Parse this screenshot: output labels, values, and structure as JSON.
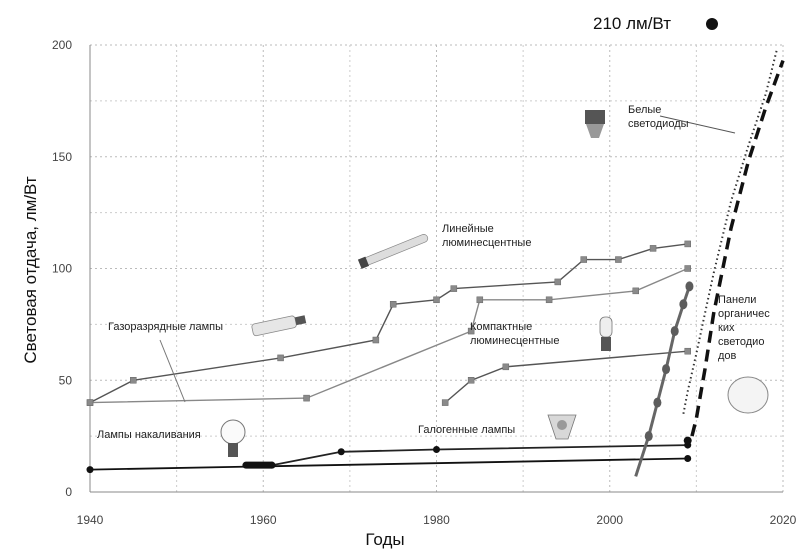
{
  "chart_data": {
    "type": "line",
    "title": "",
    "xlabel": "Годы",
    "ylabel": "Световая отдача, лм/Вт",
    "xlim": [
      1940,
      2020
    ],
    "ylim": [
      0,
      200
    ],
    "xticks": [
      "1940",
      "1960",
      "1980",
      "2000",
      "2020"
    ],
    "yticks": [
      "0",
      "50",
      "100",
      "150",
      "200"
    ],
    "grid": "dotted",
    "peak_label": "210 лм/Вт",
    "series": [
      {
        "name": "Линейные люминесцентные",
        "style": "line-square",
        "color": "#555555",
        "points": [
          [
            1940,
            40
          ],
          [
            1945,
            50
          ],
          [
            1962,
            60
          ],
          [
            1973,
            68
          ],
          [
            1975,
            84
          ],
          [
            1980,
            86
          ],
          [
            1982,
            91
          ],
          [
            1994,
            94
          ],
          [
            1997,
            104
          ],
          [
            2001,
            104
          ],
          [
            2005,
            109
          ],
          [
            2009,
            111
          ]
        ]
      },
      {
        "name": "Компактные люминесцентные",
        "style": "line-square",
        "color": "#888888",
        "points": [
          [
            1940,
            40
          ],
          [
            1965,
            42
          ],
          [
            1984,
            72
          ],
          [
            1985,
            86
          ],
          [
            1993,
            86
          ],
          [
            2003,
            90
          ],
          [
            2009,
            100
          ]
        ]
      },
      {
        "name": "Газоразрядные лампы",
        "style": "line-square",
        "color": "#555555",
        "points": [
          [
            1981,
            40
          ],
          [
            1984,
            50
          ],
          [
            1988,
            56
          ],
          [
            2009,
            63
          ]
        ]
      },
      {
        "name": "Лампы накаливания",
        "style": "line-dot",
        "color": "#222222",
        "points": [
          [
            1958,
            12
          ],
          [
            1961,
            12
          ],
          [
            1969,
            18
          ],
          [
            1980,
            19
          ],
          [
            2009,
            21
          ]
        ]
      },
      {
        "name": "Галогенные лампы",
        "style": "line-dot",
        "color": "#111111",
        "points": [
          [
            1940,
            10
          ],
          [
            2009,
            15
          ]
        ]
      },
      {
        "name": "Белые светодиоды",
        "style": "dotted",
        "color": "#333333",
        "points": [
          [
            2008.5,
            35
          ],
          [
            2009,
            45
          ],
          [
            2010,
            62
          ],
          [
            2011,
            80
          ],
          [
            2012,
            98
          ],
          [
            2014,
            130
          ],
          [
            2016,
            155
          ],
          [
            2018,
            178
          ],
          [
            2019.3,
            198
          ]
        ]
      },
      {
        "name": "Панели органических светодиодов",
        "style": "dashed",
        "color": "#111111",
        "points": [
          [
            2009.5,
            25
          ],
          [
            2010,
            33
          ],
          [
            2011,
            55
          ],
          [
            2012,
            80
          ],
          [
            2014,
            118
          ],
          [
            2016,
            148
          ],
          [
            2018,
            172
          ],
          [
            2020,
            193
          ]
        ]
      },
      {
        "name": "",
        "style": "measured-led",
        "color": "#666666",
        "points": [
          [
            2003,
            7
          ],
          [
            2004.5,
            25
          ],
          [
            2005.5,
            40
          ],
          [
            2006.5,
            55
          ],
          [
            2007.5,
            72
          ],
          [
            2008.5,
            84
          ],
          [
            2009.2,
            92
          ]
        ]
      }
    ],
    "annotations": [
      {
        "lines": [
          "Линейные",
          "люминесцентные"
        ]
      },
      {
        "lines": [
          "Газоразрядные лампы"
        ]
      },
      {
        "lines": [
          "Компактные",
          "люминесцентные"
        ]
      },
      {
        "lines": [
          "Белые",
          "светодиоды"
        ]
      },
      {
        "lines": [
          "Панели",
          "органичес",
          "ких",
          "светодио",
          "дов"
        ]
      },
      {
        "lines": [
          "Лампы накаливания"
        ]
      },
      {
        "lines": [
          "Галогенные лампы"
        ]
      }
    ],
    "icons": [
      "led-bulb-icon",
      "fluorescent-tube-icon",
      "discharge-lamp-icon",
      "cfl-bulb-icon",
      "incandescent-bulb-icon",
      "halogen-lamp-icon",
      "oled-panel-icon"
    ]
  }
}
